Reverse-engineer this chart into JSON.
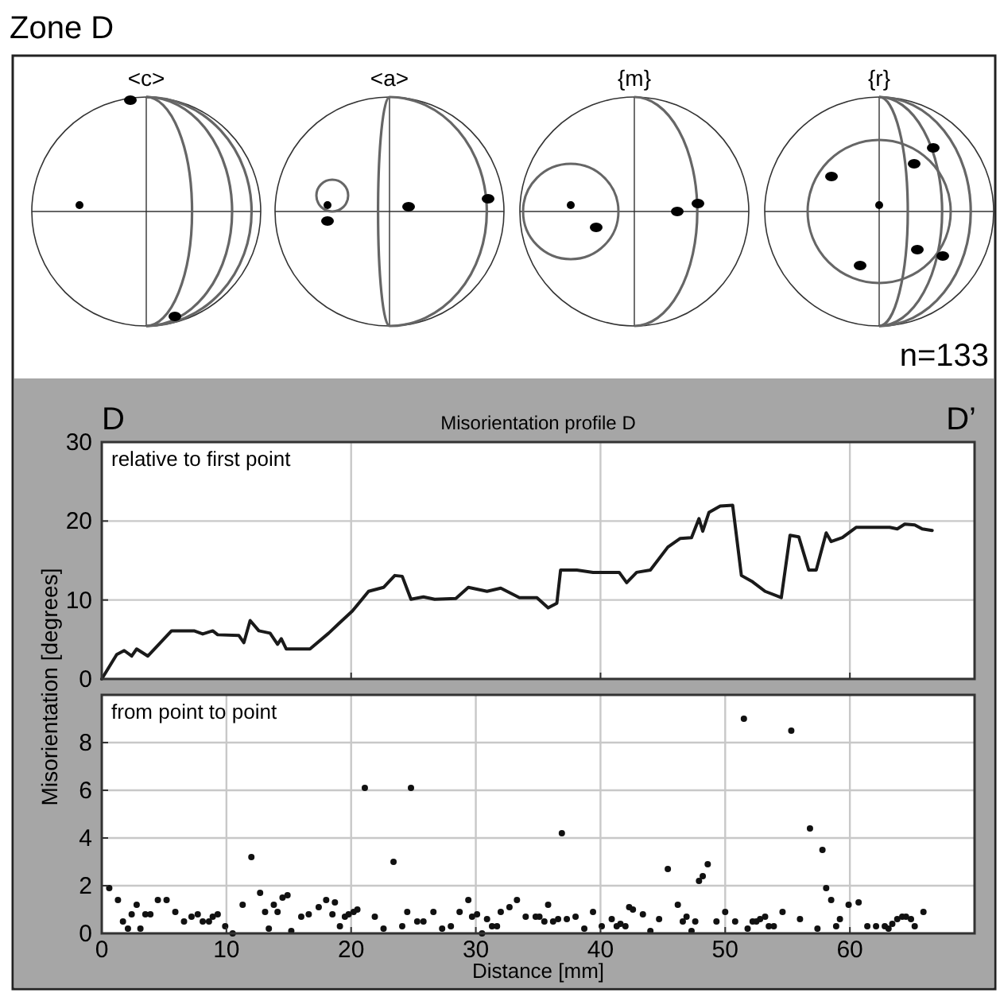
{
  "chart_data": [
    {
      "type": "other",
      "title": "Zone D",
      "annotations": [
        "<c>",
        "<a>",
        "{m}",
        "{r}",
        "n=133"
      ]
    },
    {
      "type": "line",
      "title": "Misorientation profile D",
      "annotations": [
        "D",
        "D’",
        "relative to first point"
      ],
      "ylabel": "Misorientation [degrees]",
      "color": "#1a1a1a",
      "xlim": [
        0,
        70
      ],
      "ylim": [
        0,
        30
      ],
      "xticks": [
        0,
        20,
        40,
        60
      ],
      "yticks": [
        0,
        10,
        20,
        30
      ],
      "grid": true,
      "tick_labels": "y",
      "x": [
        0,
        1.2,
        1.8,
        2.4,
        2.8,
        3.7,
        5.6,
        7.4,
        8.1,
        8.9,
        9.3,
        11.0,
        11.4,
        11.9,
        12.6,
        13.5,
        14.1,
        14.4,
        14.8,
        16.7,
        18.2,
        19.0,
        20.1,
        21.4,
        22.6,
        23.5,
        24.1,
        24.8,
        25.8,
        26.7,
        28.4,
        29.4,
        30.9,
        32.0,
        33.5,
        34.9,
        35.8,
        36.5,
        36.8,
        38.1,
        39.4,
        41.5,
        42.1,
        42.9,
        44.0,
        45.4,
        46.4,
        47.3,
        47.9,
        48.2,
        48.7,
        49.6,
        50.6,
        51.3,
        52.2,
        53.2,
        54.5,
        55.2,
        55.9,
        56.7,
        57.3,
        58.1,
        58.5,
        59.4,
        60.5,
        63.2,
        63.8,
        64.4,
        65.2,
        65.8,
        66.6
      ],
      "values": [
        0,
        3.1,
        3.6,
        2.9,
        3.8,
        2.9,
        6.1,
        6.1,
        5.7,
        6.1,
        5.6,
        5.5,
        4.6,
        7.4,
        6.1,
        5.8,
        4.4,
        5.1,
        3.8,
        3.8,
        5.8,
        7.0,
        8.6,
        11.1,
        11.6,
        13.1,
        13.0,
        10.1,
        10.4,
        10.1,
        10.2,
        11.6,
        11.1,
        11.5,
        10.3,
        10.3,
        9.0,
        9.6,
        13.8,
        13.8,
        13.5,
        13.5,
        12.2,
        13.5,
        13.8,
        16.7,
        17.8,
        17.9,
        20.3,
        18.7,
        21.1,
        21.9,
        22.0,
        13.1,
        12.3,
        11.1,
        10.3,
        18.2,
        18.0,
        13.8,
        13.8,
        18.5,
        17.4,
        17.9,
        19.2,
        19.2,
        19.0,
        19.6,
        19.5,
        19.0,
        18.8
      ]
    },
    {
      "type": "scatter",
      "xlabel": "Distance [mm]",
      "annotations": [
        "from point to point"
      ],
      "color": "#111111",
      "marker": "circle",
      "xlim": [
        0,
        70
      ],
      "ylim": [
        0,
        10
      ],
      "xticks": [
        0,
        10,
        20,
        30,
        40,
        50,
        60
      ],
      "yticks": [
        0,
        2,
        4,
        6,
        8
      ],
      "grid": true,
      "x": [
        0.6,
        1.3,
        1.7,
        2.1,
        2.4,
        2.8,
        3.1,
        3.5,
        3.9,
        4.5,
        5.2,
        5.9,
        6.6,
        7.2,
        7.7,
        8.1,
        8.6,
        8.9,
        9.3,
        9.9,
        10.5,
        11.3,
        12.0,
        12.7,
        13.1,
        13.4,
        13.8,
        14.1,
        14.5,
        14.9,
        15.2,
        16.0,
        16.6,
        17.4,
        18.0,
        18.5,
        18.7,
        19.1,
        19.5,
        19.8,
        20.2,
        20.5,
        21.1,
        21.9,
        22.6,
        23.4,
        24.1,
        24.5,
        24.8,
        25.3,
        25.8,
        26.6,
        27.3,
        28.0,
        28.7,
        29.4,
        29.7,
        30.1,
        30.5,
        30.9,
        31.3,
        31.7,
        32.0,
        32.7,
        33.3,
        34.0,
        34.8,
        35.1,
        35.5,
        35.8,
        36.2,
        36.6,
        36.9,
        37.3,
        38.0,
        38.7,
        39.4,
        40.1,
        40.9,
        41.3,
        41.6,
        42.0,
        42.3,
        42.6,
        43.4,
        44.0,
        44.7,
        45.4,
        46.2,
        46.6,
        46.9,
        47.3,
        47.6,
        47.9,
        48.2,
        48.6,
        49.3,
        50.0,
        50.8,
        51.5,
        51.8,
        52.2,
        52.5,
        52.8,
        53.2,
        53.5,
        53.9,
        54.6,
        55.3,
        56.0,
        56.8,
        57.4,
        57.8,
        58.1,
        58.5,
        58.9,
        59.2,
        59.9,
        60.7,
        61.4,
        62.1,
        62.8,
        63.1,
        63.4,
        63.8,
        64.2,
        64.5,
        64.9,
        65.2,
        65.9
      ],
      "values": [
        1.9,
        1.4,
        0.5,
        0.2,
        0.8,
        1.2,
        0.2,
        0.8,
        0.8,
        1.4,
        1.4,
        0.9,
        0.5,
        0.7,
        0.8,
        0.5,
        0.5,
        0.7,
        0.8,
        0.3,
        0.0,
        1.2,
        3.2,
        1.7,
        0.9,
        0.2,
        1.2,
        0.9,
        1.5,
        1.6,
        0.1,
        0.7,
        0.8,
        1.1,
        1.4,
        0.8,
        1.3,
        0.3,
        0.7,
        0.8,
        0.9,
        1.0,
        6.1,
        0.7,
        0.2,
        3.0,
        0.3,
        0.9,
        6.1,
        0.5,
        0.5,
        0.9,
        0.2,
        0.3,
        0.9,
        1.4,
        0.7,
        0.8,
        0.0,
        0.6,
        0.3,
        0.3,
        0.9,
        1.1,
        1.4,
        0.7,
        0.7,
        0.7,
        0.5,
        1.2,
        0.5,
        0.6,
        4.2,
        0.6,
        0.7,
        0.2,
        0.9,
        0.3,
        0.6,
        0.3,
        0.4,
        0.3,
        1.1,
        1.0,
        0.8,
        0.1,
        0.6,
        2.7,
        1.2,
        0.5,
        0.7,
        0.1,
        0.5,
        2.2,
        2.4,
        2.9,
        0.5,
        0.9,
        0.5,
        9.0,
        0.2,
        0.5,
        0.5,
        0.6,
        0.7,
        0.3,
        0.3,
        0.9,
        8.5,
        0.6,
        4.4,
        0.2,
        3.5,
        1.9,
        1.4,
        0.3,
        0.6,
        1.2,
        1.3,
        0.3,
        0.3,
        0.3,
        0.2,
        0.4,
        0.6,
        0.7,
        0.7,
        0.6,
        0.3,
        0.9
      ]
    }
  ]
}
